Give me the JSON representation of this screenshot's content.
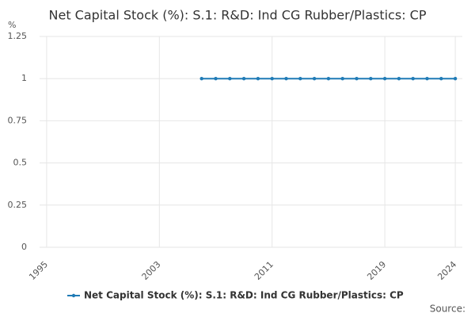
{
  "chart_data": {
    "type": "line",
    "title": "Net Capital Stock (%): S.1: R&D: Ind CG Rubber/Plastics: CP",
    "y_label": "%",
    "source": "Source:",
    "x": [
      2006,
      2007,
      2008,
      2009,
      2010,
      2011,
      2012,
      2013,
      2014,
      2015,
      2016,
      2017,
      2018,
      2019,
      2020,
      2021,
      2022,
      2023,
      2024
    ],
    "series": [
      {
        "name": "Net Capital Stock (%): S.1: R&D: Ind CG Rubber/Plastics: CP",
        "color": "#1f7bb6",
        "values": [
          1,
          1,
          1,
          1,
          1,
          1,
          1,
          1,
          1,
          1,
          1,
          1,
          1,
          1,
          1,
          1,
          1,
          1,
          1
        ]
      }
    ],
    "xlim": [
      1994.5,
      2024.5
    ],
    "xticks": [
      1995,
      2003,
      2011,
      2019,
      2024
    ],
    "ylim": [
      0,
      1.25
    ],
    "yticks": [
      0,
      0.25,
      0.5,
      0.75,
      1,
      1.25
    ],
    "grid": true,
    "legend": "bottom"
  }
}
